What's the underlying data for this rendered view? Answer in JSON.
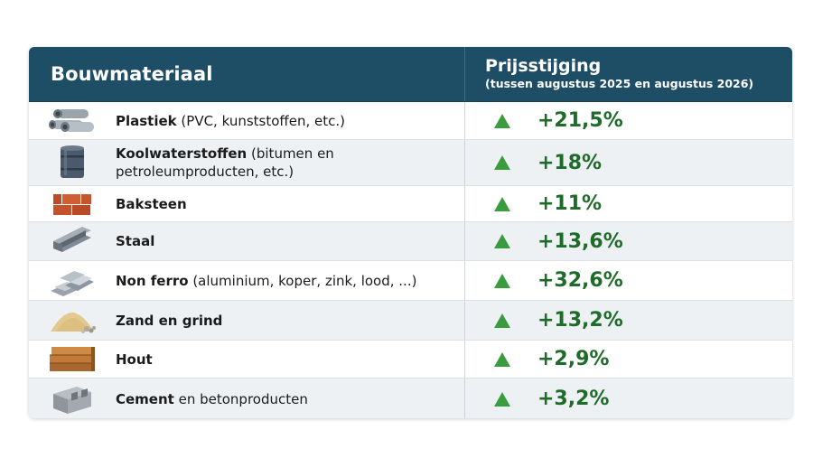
{
  "header": {
    "col1": "Bouwmateriaal",
    "col2_title": "Prijsstijging",
    "col2_subtitle": "(tussen augustus 2025 en augustus 2026)"
  },
  "colors": {
    "header_bg": "#1e4d66",
    "up_arrow": "#3a9b3f",
    "percent": "#1e6b2a"
  },
  "rows": [
    {
      "name": "Plastiek",
      "detail": " (PVC, kunststoffen, etc.)",
      "detail2": "",
      "icon": "pipes-icon",
      "change": "+21,5%",
      "trend": "up"
    },
    {
      "name": "Koolwaterstoffen",
      "detail": " (bitumen en",
      "detail2": "petroleumproducten, etc.)",
      "icon": "barrel-icon",
      "change": "+18%",
      "trend": "up"
    },
    {
      "name": "Baksteen",
      "detail": "",
      "detail2": "",
      "icon": "bricks-icon",
      "change": "+11%",
      "trend": "up"
    },
    {
      "name": "Staal",
      "detail": "",
      "detail2": "",
      "icon": "steel-beam-icon",
      "change": "+13,6%",
      "trend": "up"
    },
    {
      "name": "Non ferro",
      "detail": " (aluminium, koper, zink, lood, ...)",
      "detail2": "",
      "icon": "metal-ingots-icon",
      "change": "+32,6%",
      "trend": "up"
    },
    {
      "name": "Zand en grind",
      "detail": "",
      "detail2": "",
      "icon": "sand-pile-icon",
      "change": "+13,2%",
      "trend": "up"
    },
    {
      "name": "Hout",
      "detail": "",
      "detail2": "",
      "icon": "wood-planks-icon",
      "change": "+2,9%",
      "trend": "up"
    },
    {
      "name": "Cement",
      "detail": " en betonproducten",
      "detail2": "",
      "icon": "concrete-block-icon",
      "change": "+3,2%",
      "trend": "up"
    }
  ]
}
